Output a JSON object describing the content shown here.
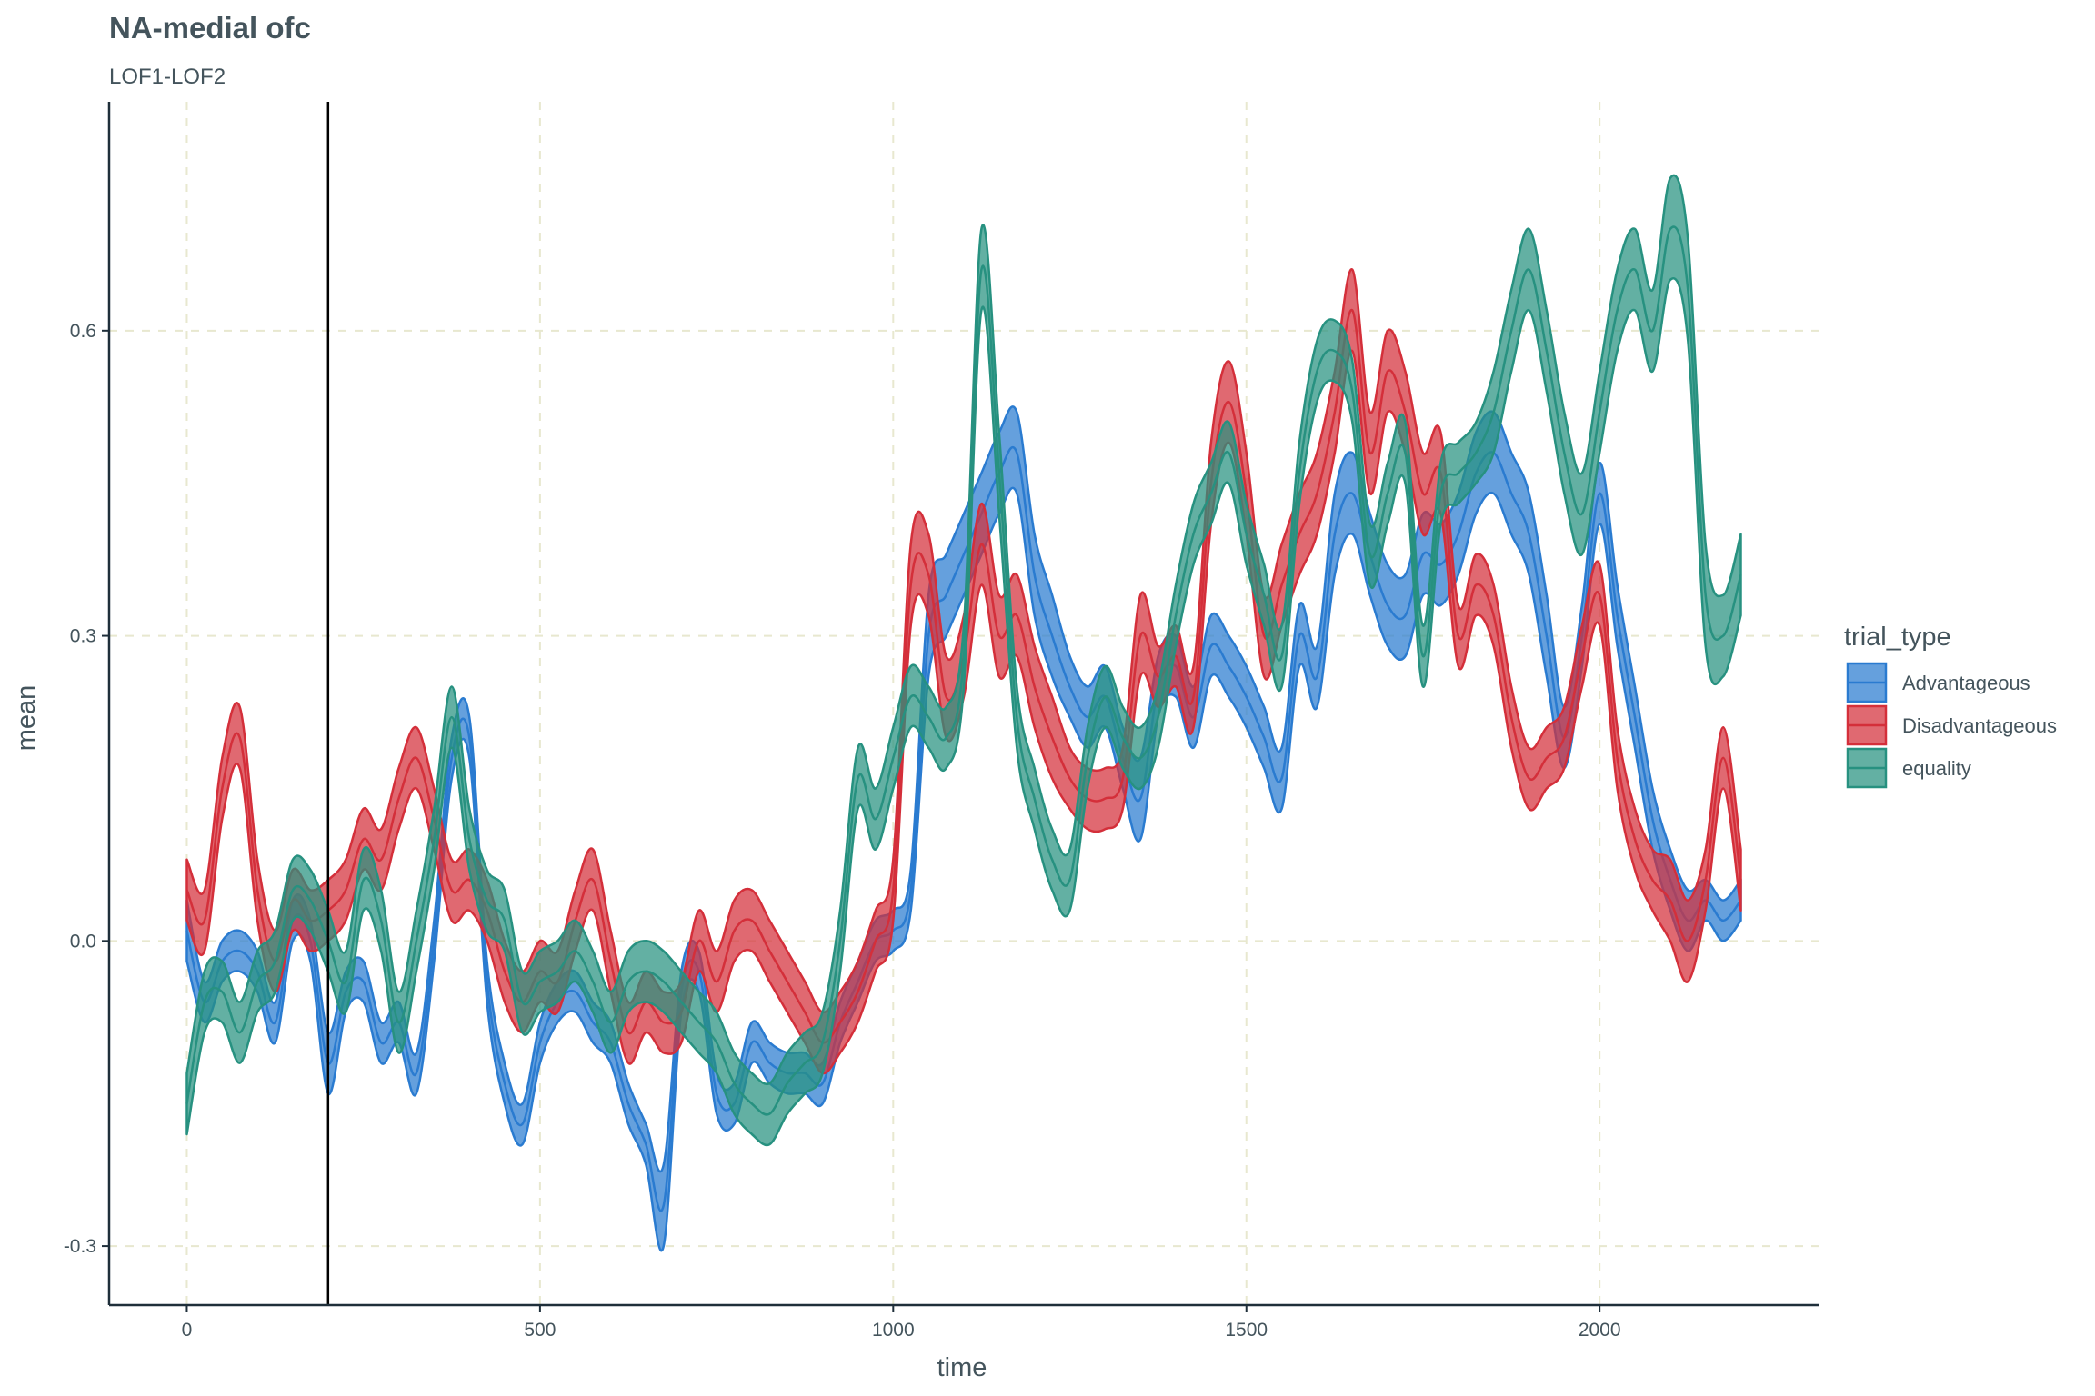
{
  "colors": {
    "Advantageous": "#2a7bd0",
    "Disadvantageous": "#d42f3a",
    "equality": "#279180",
    "text": "#44545c",
    "grid": "#e8e8cf"
  },
  "chart_data": {
    "type": "area",
    "title": "NA-medial ofc",
    "subtitle": "LOF1-LOF2",
    "xlabel": "time",
    "ylabel": "mean",
    "xlim": [
      -110,
      2310
    ],
    "ylim": [
      -0.358,
      0.825
    ],
    "x_ticks": [
      0,
      500,
      1000,
      1500,
      2000
    ],
    "x_tick_labels": [
      "0",
      "500",
      "1000",
      "1500",
      "2000"
    ],
    "y_ticks": [
      -0.3,
      0.0,
      0.3,
      0.6
    ],
    "y_tick_labels": [
      "-0.3",
      "0.0",
      "0.3",
      "0.6"
    ],
    "vline_x": 200,
    "grid": true,
    "legend": {
      "title": "trial_type",
      "position": "right"
    },
    "x": [
      0,
      25,
      50,
      75,
      100,
      125,
      150,
      175,
      200,
      225,
      250,
      275,
      300,
      325,
      350,
      375,
      400,
      425,
      450,
      475,
      500,
      525,
      550,
      575,
      600,
      625,
      650,
      675,
      700,
      725,
      750,
      775,
      800,
      825,
      850,
      875,
      900,
      925,
      950,
      975,
      1000,
      1025,
      1050,
      1075,
      1100,
      1125,
      1150,
      1175,
      1200,
      1225,
      1250,
      1275,
      1300,
      1325,
      1350,
      1375,
      1400,
      1425,
      1450,
      1475,
      1500,
      1525,
      1550,
      1575,
      1600,
      1625,
      1650,
      1675,
      1700,
      1725,
      1750,
      1775,
      1800,
      1825,
      1850,
      1875,
      1900,
      1925,
      1950,
      1975,
      2000,
      2025,
      2050,
      2075,
      2100,
      2125,
      2150,
      2175,
      2200
    ],
    "series": [
      {
        "name": "Advantageous",
        "mean": [
          0.01,
          -0.06,
          -0.02,
          -0.01,
          -0.03,
          -0.08,
          0.02,
          0.0,
          -0.12,
          -0.05,
          -0.04,
          -0.1,
          -0.08,
          -0.13,
          0.0,
          0.18,
          0.2,
          -0.04,
          -0.14,
          -0.18,
          -0.1,
          -0.06,
          -0.05,
          -0.08,
          -0.1,
          -0.16,
          -0.2,
          -0.26,
          -0.05,
          -0.03,
          -0.15,
          -0.16,
          -0.1,
          -0.12,
          -0.13,
          -0.13,
          -0.14,
          -0.08,
          -0.04,
          0.0,
          0.01,
          0.05,
          0.3,
          0.34,
          0.38,
          0.42,
          0.46,
          0.48,
          0.36,
          0.3,
          0.25,
          0.22,
          0.24,
          0.18,
          0.14,
          0.25,
          0.27,
          0.22,
          0.29,
          0.27,
          0.24,
          0.2,
          0.16,
          0.3,
          0.26,
          0.4,
          0.44,
          0.38,
          0.33,
          0.32,
          0.38,
          0.37,
          0.4,
          0.46,
          0.48,
          0.44,
          0.4,
          0.3,
          0.2,
          0.3,
          0.44,
          0.32,
          0.22,
          0.12,
          0.06,
          0.02,
          0.04,
          0.02,
          0.04
        ],
        "lower": [
          -0.02,
          -0.08,
          -0.04,
          -0.03,
          -0.05,
          -0.1,
          0.0,
          -0.02,
          -0.15,
          -0.07,
          -0.06,
          -0.12,
          -0.1,
          -0.15,
          -0.02,
          0.16,
          0.18,
          -0.06,
          -0.16,
          -0.2,
          -0.12,
          -0.08,
          -0.07,
          -0.1,
          -0.12,
          -0.18,
          -0.22,
          -0.3,
          -0.07,
          -0.05,
          -0.17,
          -0.18,
          -0.12,
          -0.14,
          -0.15,
          -0.15,
          -0.16,
          -0.1,
          -0.06,
          -0.02,
          -0.01,
          0.03,
          0.26,
          0.3,
          0.34,
          0.38,
          0.42,
          0.44,
          0.32,
          0.26,
          0.22,
          0.19,
          0.21,
          0.15,
          0.1,
          0.22,
          0.24,
          0.19,
          0.26,
          0.24,
          0.21,
          0.17,
          0.13,
          0.27,
          0.23,
          0.36,
          0.4,
          0.34,
          0.29,
          0.28,
          0.34,
          0.33,
          0.36,
          0.42,
          0.44,
          0.4,
          0.36,
          0.26,
          0.17,
          0.27,
          0.41,
          0.29,
          0.19,
          0.09,
          0.03,
          -0.01,
          0.02,
          0.0,
          0.02
        ],
        "upper": [
          0.04,
          -0.04,
          0.0,
          0.01,
          -0.01,
          -0.06,
          0.04,
          0.02,
          -0.09,
          -0.03,
          -0.02,
          -0.08,
          -0.06,
          -0.11,
          0.02,
          0.2,
          0.22,
          -0.02,
          -0.12,
          -0.16,
          -0.08,
          -0.04,
          -0.03,
          -0.06,
          -0.08,
          -0.14,
          -0.18,
          -0.22,
          -0.03,
          -0.01,
          -0.13,
          -0.14,
          -0.08,
          -0.1,
          -0.11,
          -0.11,
          -0.12,
          -0.06,
          -0.02,
          0.02,
          0.03,
          0.07,
          0.34,
          0.38,
          0.42,
          0.46,
          0.5,
          0.52,
          0.4,
          0.34,
          0.28,
          0.25,
          0.27,
          0.21,
          0.18,
          0.28,
          0.3,
          0.25,
          0.32,
          0.3,
          0.27,
          0.23,
          0.19,
          0.33,
          0.29,
          0.44,
          0.48,
          0.42,
          0.37,
          0.36,
          0.42,
          0.41,
          0.44,
          0.5,
          0.52,
          0.48,
          0.44,
          0.34,
          0.23,
          0.33,
          0.47,
          0.35,
          0.25,
          0.15,
          0.09,
          0.05,
          0.06,
          0.04,
          0.06
        ]
      },
      {
        "name": "Disadvantageous",
        "mean": [
          0.05,
          0.02,
          0.15,
          0.2,
          0.05,
          -0.02,
          0.04,
          0.02,
          0.03,
          0.05,
          0.1,
          0.08,
          0.14,
          0.18,
          0.12,
          0.05,
          0.06,
          0.03,
          -0.03,
          -0.06,
          -0.03,
          -0.04,
          0.02,
          0.06,
          -0.02,
          -0.09,
          -0.06,
          -0.08,
          -0.07,
          0.0,
          -0.04,
          0.01,
          0.02,
          -0.01,
          -0.04,
          -0.07,
          -0.1,
          -0.08,
          -0.05,
          0.0,
          0.05,
          0.35,
          0.36,
          0.24,
          0.28,
          0.39,
          0.3,
          0.32,
          0.25,
          0.2,
          0.16,
          0.14,
          0.14,
          0.16,
          0.3,
          0.26,
          0.28,
          0.24,
          0.45,
          0.53,
          0.44,
          0.3,
          0.35,
          0.4,
          0.44,
          0.52,
          0.62,
          0.48,
          0.56,
          0.52,
          0.44,
          0.46,
          0.3,
          0.35,
          0.32,
          0.22,
          0.16,
          0.18,
          0.2,
          0.28,
          0.34,
          0.18,
          0.1,
          0.06,
          0.04,
          0.0,
          0.06,
          0.18,
          0.06
        ],
        "lower": [
          0.02,
          -0.01,
          0.12,
          0.17,
          0.02,
          -0.05,
          0.01,
          -0.01,
          0.0,
          0.02,
          0.07,
          0.05,
          0.11,
          0.15,
          0.09,
          0.02,
          0.03,
          0.0,
          -0.06,
          -0.09,
          -0.06,
          -0.07,
          -0.01,
          0.03,
          -0.05,
          -0.12,
          -0.09,
          -0.11,
          -0.1,
          -0.03,
          -0.07,
          -0.02,
          -0.01,
          -0.04,
          -0.07,
          -0.1,
          -0.13,
          -0.11,
          -0.08,
          -0.03,
          0.02,
          0.31,
          0.32,
          0.2,
          0.24,
          0.35,
          0.26,
          0.28,
          0.21,
          0.16,
          0.13,
          0.11,
          0.11,
          0.13,
          0.26,
          0.23,
          0.25,
          0.21,
          0.41,
          0.49,
          0.4,
          0.26,
          0.31,
          0.36,
          0.4,
          0.48,
          0.58,
          0.44,
          0.52,
          0.48,
          0.4,
          0.42,
          0.27,
          0.32,
          0.29,
          0.19,
          0.13,
          0.15,
          0.17,
          0.25,
          0.31,
          0.15,
          0.07,
          0.03,
          0.0,
          -0.04,
          0.03,
          0.15,
          0.03
        ],
        "upper": [
          0.08,
          0.05,
          0.18,
          0.23,
          0.08,
          0.01,
          0.07,
          0.05,
          0.06,
          0.08,
          0.13,
          0.11,
          0.17,
          0.21,
          0.15,
          0.08,
          0.09,
          0.06,
          0.0,
          -0.03,
          0.0,
          -0.01,
          0.05,
          0.09,
          0.01,
          -0.06,
          -0.03,
          -0.05,
          -0.04,
          0.03,
          -0.01,
          0.04,
          0.05,
          0.02,
          -0.01,
          -0.04,
          -0.07,
          -0.05,
          -0.02,
          0.03,
          0.08,
          0.39,
          0.4,
          0.28,
          0.32,
          0.43,
          0.34,
          0.36,
          0.29,
          0.24,
          0.19,
          0.17,
          0.17,
          0.19,
          0.34,
          0.29,
          0.31,
          0.27,
          0.49,
          0.57,
          0.48,
          0.34,
          0.39,
          0.44,
          0.48,
          0.56,
          0.66,
          0.52,
          0.6,
          0.56,
          0.48,
          0.5,
          0.33,
          0.38,
          0.35,
          0.25,
          0.19,
          0.21,
          0.23,
          0.31,
          0.37,
          0.21,
          0.13,
          0.09,
          0.08,
          0.04,
          0.09,
          0.21,
          0.09
        ]
      },
      {
        "name": "equality",
        "mean": [
          -0.16,
          -0.06,
          -0.05,
          -0.09,
          -0.04,
          -0.02,
          0.05,
          0.04,
          0.0,
          -0.04,
          0.06,
          0.02,
          -0.08,
          0.0,
          0.1,
          0.22,
          0.1,
          0.04,
          0.02,
          -0.06,
          -0.04,
          -0.03,
          -0.01,
          -0.04,
          -0.08,
          -0.04,
          -0.03,
          -0.04,
          -0.06,
          -0.08,
          -0.1,
          -0.14,
          -0.16,
          -0.17,
          -0.14,
          -0.12,
          -0.1,
          0.0,
          0.16,
          0.12,
          0.18,
          0.24,
          0.22,
          0.2,
          0.28,
          0.66,
          0.46,
          0.22,
          0.14,
          0.08,
          0.06,
          0.18,
          0.24,
          0.2,
          0.18,
          0.22,
          0.32,
          0.4,
          0.44,
          0.48,
          0.4,
          0.34,
          0.28,
          0.46,
          0.56,
          0.58,
          0.54,
          0.38,
          0.44,
          0.48,
          0.28,
          0.44,
          0.46,
          0.48,
          0.52,
          0.6,
          0.66,
          0.58,
          0.48,
          0.42,
          0.52,
          0.62,
          0.66,
          0.6,
          0.7,
          0.64,
          0.34,
          0.3,
          0.36
        ],
        "lower": [
          -0.19,
          -0.09,
          -0.08,
          -0.12,
          -0.07,
          -0.05,
          0.02,
          0.01,
          -0.03,
          -0.07,
          0.03,
          -0.01,
          -0.11,
          -0.03,
          0.07,
          0.19,
          0.07,
          0.01,
          -0.01,
          -0.09,
          -0.07,
          -0.06,
          -0.04,
          -0.07,
          -0.11,
          -0.07,
          -0.06,
          -0.07,
          -0.09,
          -0.11,
          -0.13,
          -0.17,
          -0.19,
          -0.2,
          -0.17,
          -0.15,
          -0.13,
          -0.03,
          0.13,
          0.09,
          0.15,
          0.21,
          0.19,
          0.17,
          0.25,
          0.62,
          0.42,
          0.19,
          0.11,
          0.05,
          0.03,
          0.15,
          0.21,
          0.17,
          0.15,
          0.19,
          0.29,
          0.37,
          0.41,
          0.45,
          0.37,
          0.31,
          0.25,
          0.43,
          0.53,
          0.55,
          0.51,
          0.35,
          0.41,
          0.45,
          0.25,
          0.41,
          0.43,
          0.45,
          0.48,
          0.56,
          0.62,
          0.54,
          0.44,
          0.38,
          0.48,
          0.58,
          0.62,
          0.56,
          0.65,
          0.59,
          0.29,
          0.26,
          0.32
        ],
        "upper": [
          -0.13,
          -0.03,
          -0.02,
          -0.06,
          -0.01,
          0.01,
          0.08,
          0.07,
          0.03,
          -0.01,
          0.09,
          0.05,
          -0.05,
          0.03,
          0.13,
          0.25,
          0.13,
          0.07,
          0.05,
          -0.03,
          -0.01,
          0.0,
          0.02,
          -0.01,
          -0.05,
          -0.01,
          0.0,
          -0.01,
          -0.03,
          -0.05,
          -0.07,
          -0.11,
          -0.13,
          -0.14,
          -0.11,
          -0.09,
          -0.07,
          0.03,
          0.19,
          0.15,
          0.21,
          0.27,
          0.25,
          0.23,
          0.31,
          0.7,
          0.5,
          0.25,
          0.17,
          0.11,
          0.09,
          0.21,
          0.27,
          0.23,
          0.21,
          0.25,
          0.35,
          0.43,
          0.47,
          0.51,
          0.43,
          0.37,
          0.31,
          0.49,
          0.59,
          0.61,
          0.57,
          0.41,
          0.47,
          0.51,
          0.31,
          0.47,
          0.49,
          0.51,
          0.56,
          0.64,
          0.7,
          0.62,
          0.52,
          0.46,
          0.56,
          0.66,
          0.7,
          0.64,
          0.75,
          0.69,
          0.39,
          0.34,
          0.4
        ]
      }
    ]
  }
}
